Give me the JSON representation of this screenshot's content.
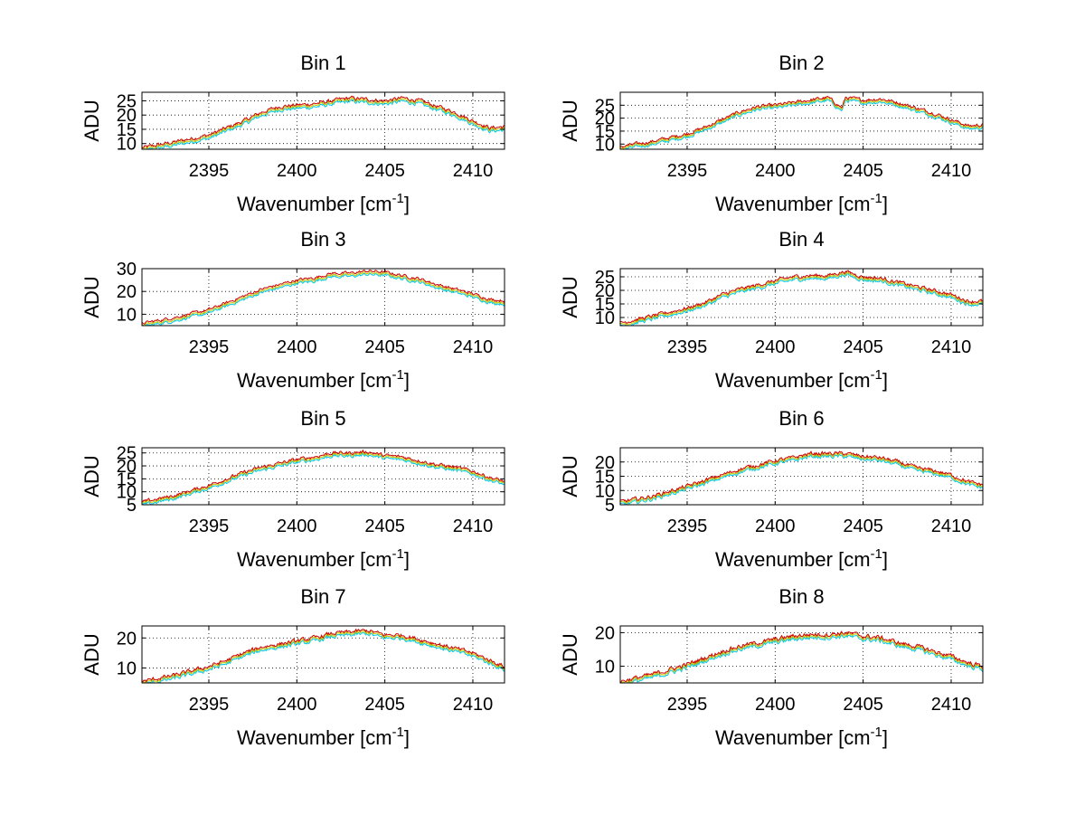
{
  "figure": {
    "background": "#ffffff",
    "series_colors": [
      "#00c8e6",
      "#c8c800",
      "#cc0000"
    ]
  },
  "chart_data": [
    {
      "type": "line",
      "title": "Bin 1",
      "xlabel": "Wavenumber [cm",
      "xlabel_superscript": "-1",
      "xlabel_suffix": "]",
      "ylabel": "ADU",
      "xlim": [
        2391.2,
        2411.8
      ],
      "ylim": [
        8,
        28
      ],
      "xticks": [
        2395,
        2400,
        2405,
        2410
      ],
      "yticks": [
        10,
        15,
        20,
        25
      ],
      "grid": true,
      "profile": [
        [
          2391.2,
          8.5
        ],
        [
          2393,
          10.5
        ],
        [
          2395,
          13
        ],
        [
          2396,
          15.5
        ],
        [
          2397,
          18
        ],
        [
          2398,
          21
        ],
        [
          2399,
          23
        ],
        [
          2400,
          23.5
        ],
        [
          2401,
          24
        ],
        [
          2402,
          25
        ],
        [
          2403,
          26
        ],
        [
          2404,
          25.5
        ],
        [
          2405,
          25
        ],
        [
          2406,
          26
        ],
        [
          2407,
          25
        ],
        [
          2408,
          23
        ],
        [
          2409,
          21
        ],
        [
          2410,
          18
        ],
        [
          2411,
          15.5
        ],
        [
          2411.8,
          16
        ]
      ],
      "offsets": [
        -1.2,
        -0.6,
        0
      ]
    },
    {
      "type": "line",
      "title": "Bin 2",
      "xlabel": "Wavenumber [cm",
      "xlabel_superscript": "-1",
      "xlabel_suffix": "]",
      "ylabel": "ADU",
      "xlim": [
        2391.2,
        2411.8
      ],
      "ylim": [
        8,
        30
      ],
      "xticks": [
        2395,
        2400,
        2405,
        2410
      ],
      "yticks": [
        10,
        15,
        20,
        25
      ],
      "grid": true,
      "profile": [
        [
          2391.2,
          9
        ],
        [
          2393,
          11
        ],
        [
          2395,
          14
        ],
        [
          2396,
          16.5
        ],
        [
          2397,
          19.5
        ],
        [
          2398,
          22.5
        ],
        [
          2399,
          24.5
        ],
        [
          2400,
          25
        ],
        [
          2401,
          26
        ],
        [
          2402,
          27
        ],
        [
          2403,
          28
        ],
        [
          2403.8,
          24
        ],
        [
          2404,
          28
        ],
        [
          2405,
          27
        ],
        [
          2406,
          27.5
        ],
        [
          2407,
          26
        ],
        [
          2408,
          24
        ],
        [
          2409,
          22
        ],
        [
          2410,
          19.5
        ],
        [
          2411,
          17
        ],
        [
          2411.8,
          17.5
        ]
      ],
      "offsets": [
        -1.2,
        -0.6,
        0
      ]
    },
    {
      "type": "line",
      "title": "Bin 3",
      "xlabel": "Wavenumber [cm",
      "xlabel_superscript": "-1",
      "xlabel_suffix": "]",
      "ylabel": "ADU",
      "xlim": [
        2391.2,
        2411.8
      ],
      "ylim": [
        5,
        30
      ],
      "xticks": [
        2395,
        2400,
        2405,
        2410
      ],
      "yticks": [
        10,
        20,
        30
      ],
      "grid": true,
      "profile": [
        [
          2391.2,
          6
        ],
        [
          2393,
          8.5
        ],
        [
          2395,
          12
        ],
        [
          2396,
          15
        ],
        [
          2397,
          18
        ],
        [
          2398,
          21
        ],
        [
          2399,
          23
        ],
        [
          2400,
          25
        ],
        [
          2401,
          26
        ],
        [
          2402,
          28
        ],
        [
          2403,
          28
        ],
        [
          2404,
          29
        ],
        [
          2405,
          28.5
        ],
        [
          2406,
          27
        ],
        [
          2407,
          25.5
        ],
        [
          2408,
          23
        ],
        [
          2409,
          21
        ],
        [
          2410,
          19
        ],
        [
          2411,
          16.5
        ],
        [
          2411.8,
          16
        ]
      ],
      "offsets": [
        -1.5,
        -0.8,
        0
      ]
    },
    {
      "type": "line",
      "title": "Bin 4",
      "xlabel": "Wavenumber [cm",
      "xlabel_superscript": "-1",
      "xlabel_suffix": "]",
      "ylabel": "ADU",
      "xlim": [
        2391.2,
        2411.8
      ],
      "ylim": [
        7,
        28
      ],
      "xticks": [
        2395,
        2400,
        2405,
        2410
      ],
      "yticks": [
        10,
        15,
        20,
        25
      ],
      "grid": true,
      "profile": [
        [
          2391.2,
          8
        ],
        [
          2393,
          10.5
        ],
        [
          2395,
          13.5
        ],
        [
          2396,
          15.5
        ],
        [
          2397,
          18.5
        ],
        [
          2398,
          20.5
        ],
        [
          2399,
          22
        ],
        [
          2400,
          23.5
        ],
        [
          2401,
          25
        ],
        [
          2402,
          25.5
        ],
        [
          2403,
          25.5
        ],
        [
          2404,
          27
        ],
        [
          2405,
          25
        ],
        [
          2406,
          24.5
        ],
        [
          2407,
          23
        ],
        [
          2408,
          21.5
        ],
        [
          2409,
          20
        ],
        [
          2410,
          18.5
        ],
        [
          2411,
          16
        ],
        [
          2411.8,
          16
        ]
      ],
      "offsets": [
        -1.2,
        -0.6,
        0
      ]
    },
    {
      "type": "line",
      "title": "Bin 5",
      "xlabel": "Wavenumber [cm",
      "xlabel_superscript": "-1",
      "xlabel_suffix": "]",
      "ylabel": "ADU",
      "xlim": [
        2391.2,
        2411.8
      ],
      "ylim": [
        5,
        27
      ],
      "xticks": [
        2395,
        2400,
        2405,
        2410
      ],
      "yticks": [
        5,
        10,
        15,
        20,
        25
      ],
      "grid": true,
      "profile": [
        [
          2391.2,
          6
        ],
        [
          2393,
          8.5
        ],
        [
          2395,
          12.5
        ],
        [
          2396,
          15
        ],
        [
          2397,
          17.5
        ],
        [
          2398,
          19.5
        ],
        [
          2399,
          21
        ],
        [
          2400,
          22.5
        ],
        [
          2401,
          23.5
        ],
        [
          2402,
          25
        ],
        [
          2403,
          25
        ],
        [
          2404,
          25.5
        ],
        [
          2405,
          24
        ],
        [
          2406,
          23.5
        ],
        [
          2407,
          22
        ],
        [
          2408,
          20.5
        ],
        [
          2409,
          19.5
        ],
        [
          2410,
          18
        ],
        [
          2411,
          15.5
        ],
        [
          2411.8,
          14
        ]
      ],
      "offsets": [
        -1.2,
        -0.6,
        0
      ]
    },
    {
      "type": "line",
      "title": "Bin 6",
      "xlabel": "Wavenumber [cm",
      "xlabel_superscript": "-1",
      "xlabel_suffix": "]",
      "ylabel": "ADU",
      "xlim": [
        2391.2,
        2411.8
      ],
      "ylim": [
        5,
        25
      ],
      "xticks": [
        2395,
        2400,
        2405,
        2410
      ],
      "yticks": [
        5,
        10,
        15,
        20
      ],
      "grid": true,
      "profile": [
        [
          2391.2,
          6
        ],
        [
          2393,
          8
        ],
        [
          2395,
          11.5
        ],
        [
          2396,
          13.5
        ],
        [
          2397,
          15.5
        ],
        [
          2398,
          17.5
        ],
        [
          2399,
          19
        ],
        [
          2400,
          20.5
        ],
        [
          2401,
          21.5
        ],
        [
          2402,
          23
        ],
        [
          2403,
          23
        ],
        [
          2404,
          23
        ],
        [
          2405,
          22
        ],
        [
          2406,
          21.5
        ],
        [
          2407,
          20
        ],
        [
          2408,
          18
        ],
        [
          2409,
          17
        ],
        [
          2410,
          15.5
        ],
        [
          2411,
          13
        ],
        [
          2411.8,
          12
        ]
      ],
      "offsets": [
        -1.1,
        -0.55,
        0
      ]
    },
    {
      "type": "line",
      "title": "Bin 7",
      "xlabel": "Wavenumber [cm",
      "xlabel_superscript": "-1",
      "xlabel_suffix": "]",
      "ylabel": "ADU",
      "xlim": [
        2391.2,
        2411.8
      ],
      "ylim": [
        5,
        24
      ],
      "xticks": [
        2395,
        2400,
        2405,
        2410
      ],
      "yticks": [
        10,
        20
      ],
      "grid": true,
      "profile": [
        [
          2391.2,
          5.5
        ],
        [
          2393,
          7.5
        ],
        [
          2395,
          10.5
        ],
        [
          2396,
          12.5
        ],
        [
          2397,
          15
        ],
        [
          2398,
          17
        ],
        [
          2399,
          18
        ],
        [
          2400,
          19
        ],
        [
          2401,
          20
        ],
        [
          2402,
          21.5
        ],
        [
          2403,
          22
        ],
        [
          2404,
          22.5
        ],
        [
          2405,
          21
        ],
        [
          2406,
          21
        ],
        [
          2407,
          19.5
        ],
        [
          2408,
          18
        ],
        [
          2409,
          16.5
        ],
        [
          2410,
          15
        ],
        [
          2411,
          12.5
        ],
        [
          2411.8,
          10.5
        ]
      ],
      "offsets": [
        -1.1,
        -0.55,
        0
      ]
    },
    {
      "type": "line",
      "title": "Bin 8",
      "xlabel": "Wavenumber [cm",
      "xlabel_superscript": "-1",
      "xlabel_suffix": "]",
      "ylabel": "ADU",
      "xlim": [
        2391.2,
        2411.8
      ],
      "ylim": [
        5,
        22
      ],
      "xticks": [
        2395,
        2400,
        2405,
        2410
      ],
      "yticks": [
        10,
        20
      ],
      "grid": true,
      "profile": [
        [
          2391.2,
          5.5
        ],
        [
          2393,
          7.5
        ],
        [
          2395,
          10.5
        ],
        [
          2396,
          12.5
        ],
        [
          2397,
          14.5
        ],
        [
          2398,
          16
        ],
        [
          2399,
          17
        ],
        [
          2400,
          18
        ],
        [
          2401,
          19
        ],
        [
          2402,
          19.5
        ],
        [
          2403,
          19.5
        ],
        [
          2404,
          20
        ],
        [
          2405,
          19
        ],
        [
          2406,
          18.5
        ],
        [
          2407,
          17
        ],
        [
          2408,
          16
        ],
        [
          2409,
          14.5
        ],
        [
          2410,
          13
        ],
        [
          2411,
          11
        ],
        [
          2411.8,
          10
        ]
      ],
      "offsets": [
        -1.0,
        -0.5,
        0
      ]
    }
  ]
}
